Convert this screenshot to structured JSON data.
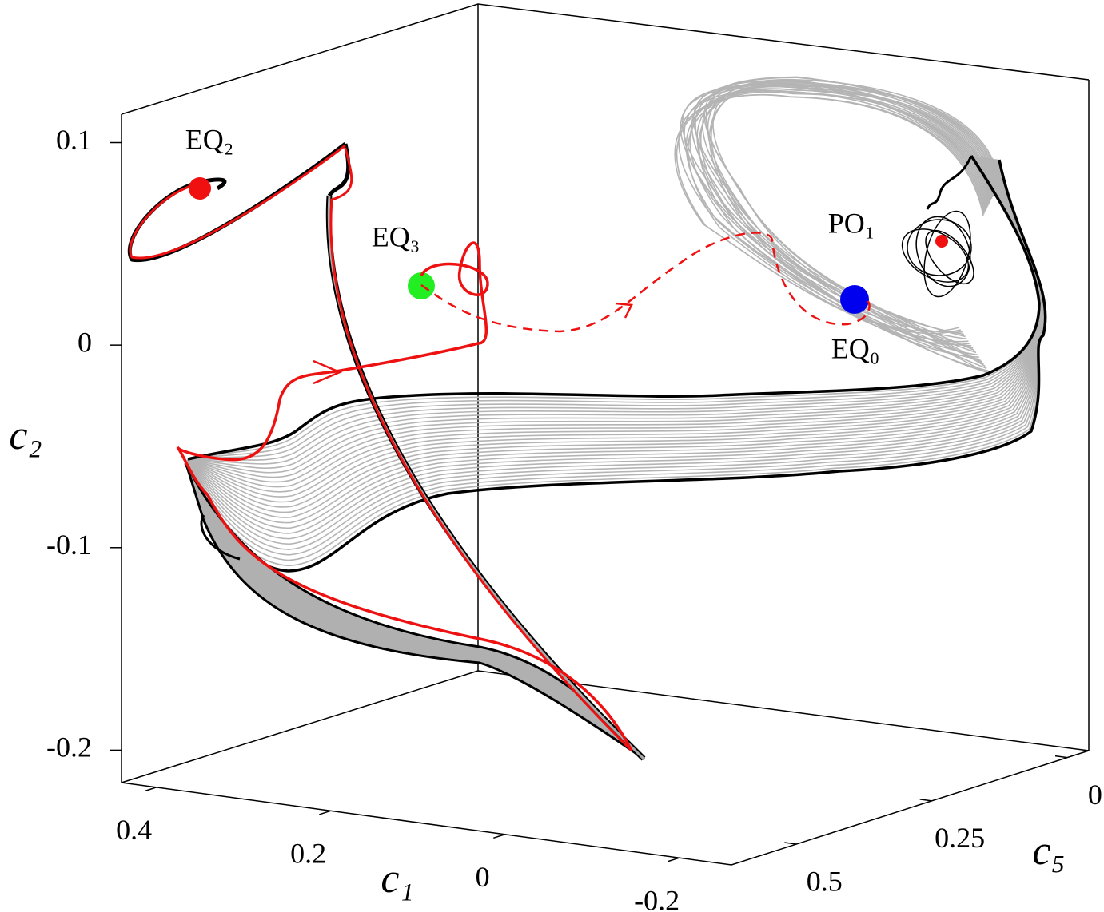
{
  "chart_data": {
    "type": "trajectory3d",
    "xlabel": "c₁",
    "ylabel": "c₂",
    "zlabel": "c₅",
    "xlim": [
      0.44,
      -0.26
    ],
    "xticks": [
      0.4,
      0.2,
      0,
      -0.2
    ],
    "ylim": [
      -0.216,
      0.114
    ],
    "yticks": [
      0.1,
      0,
      -0.1,
      -0.2
    ],
    "zlim": [
      0.62,
      -0.04
    ],
    "zticks": [
      0.5,
      0.25,
      0
    ],
    "annotations": [
      "EQ₂",
      "EQ₃",
      "PO₁",
      "EQ₀"
    ]
  }
}
